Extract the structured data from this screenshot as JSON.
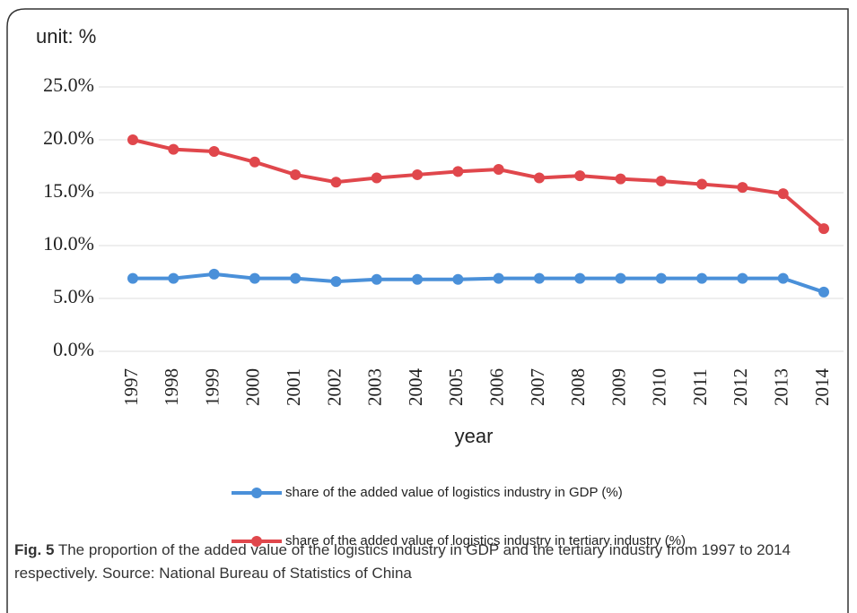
{
  "chart_data": {
    "type": "line",
    "y_label": "unit:  %",
    "x_label": "year",
    "categories": [
      "1997",
      "1998",
      "1999",
      "2000",
      "2001",
      "2002",
      "2003",
      "2004",
      "2005",
      "2006",
      "2007",
      "2008",
      "2009",
      "2010",
      "2011",
      "2012",
      "2013",
      "2014"
    ],
    "series": [
      {
        "name": "share of the added value of logistics industry in GDP (%)",
        "color": "#4a90d9",
        "values": [
          6.9,
          6.9,
          7.3,
          6.9,
          6.9,
          6.6,
          6.8,
          6.8,
          6.8,
          6.9,
          6.9,
          6.9,
          6.9,
          6.9,
          6.9,
          6.9,
          6.9,
          5.6
        ]
      },
      {
        "name": "share of the added value of logistics industry in tertiary industry (%)",
        "color": "#e0474c",
        "values": [
          20.0,
          19.1,
          18.9,
          17.9,
          16.7,
          16.0,
          16.4,
          16.7,
          17.0,
          17.2,
          16.4,
          16.6,
          16.3,
          16.1,
          15.8,
          15.5,
          14.9,
          11.6
        ]
      }
    ],
    "ylim": [
      0,
      25
    ],
    "yticks": [
      {
        "value": 0,
        "label": "0.0%"
      },
      {
        "value": 5,
        "label": "5.0%"
      },
      {
        "value": 10,
        "label": "10.0%"
      },
      {
        "value": 15,
        "label": "15.0%"
      },
      {
        "value": 20,
        "label": "20.0%"
      },
      {
        "value": 25,
        "label": "25.0%"
      }
    ],
    "grid": true
  },
  "caption": {
    "label": "Fig. 5",
    "text": "The proportion of the added value of the logistics industry in GDP and the tertiary industry from 1997 to 2014 respectively. Source: National Bureau of Statistics of China"
  }
}
